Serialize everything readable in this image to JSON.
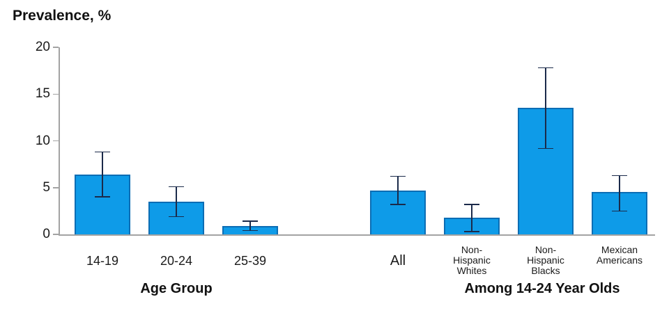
{
  "title": "Prevalence, %",
  "chart_data": {
    "type": "bar",
    "title": "Prevalence, %",
    "ylabel": "Prevalence, %",
    "xlabel": "",
    "ylim": [
      0,
      20
    ],
    "yticks": [
      0,
      5,
      10,
      15,
      20
    ],
    "grid": false,
    "legend": false,
    "error_bars": true,
    "colors": {
      "bar_fill": "#0E9BE8",
      "bar_border": "#0C6DB4",
      "error_bar": "#1B2A4A",
      "axis": "#A3A3A3",
      "text": "#1A1A1A"
    },
    "groups": [
      {
        "label": "Age Group",
        "bars": [
          {
            "category": "14-19",
            "category_lines": [
              "14-19"
            ],
            "value": 6.4,
            "ci_low": 4.0,
            "ci_high": 8.8
          },
          {
            "category": "20-24",
            "category_lines": [
              "20-24"
            ],
            "value": 3.5,
            "ci_low": 1.9,
            "ci_high": 5.1
          },
          {
            "category": "25-39",
            "category_lines": [
              "25-39"
            ],
            "value": 0.9,
            "ci_low": 0.4,
            "ci_high": 1.4
          }
        ]
      },
      {
        "label": "Among 14-24 Year Olds",
        "bars": [
          {
            "category": "All",
            "category_lines": [
              "All"
            ],
            "value": 4.7,
            "ci_low": 3.2,
            "ci_high": 6.2,
            "emphasis": true
          },
          {
            "category": "Non-Hispanic Whites",
            "category_lines": [
              "Non-",
              "Hispanic",
              "Whites"
            ],
            "value": 1.8,
            "ci_low": 0.3,
            "ci_high": 3.2
          },
          {
            "category": "Non-Hispanic Blacks",
            "category_lines": [
              "Non-",
              "Hispanic",
              "Blacks"
            ],
            "value": 13.5,
            "ci_low": 9.2,
            "ci_high": 17.8
          },
          {
            "category": "Mexican Americans",
            "category_lines": [
              "Mexican",
              "Americans"
            ],
            "value": 4.5,
            "ci_low": 2.5,
            "ci_high": 6.3
          }
        ]
      }
    ]
  }
}
